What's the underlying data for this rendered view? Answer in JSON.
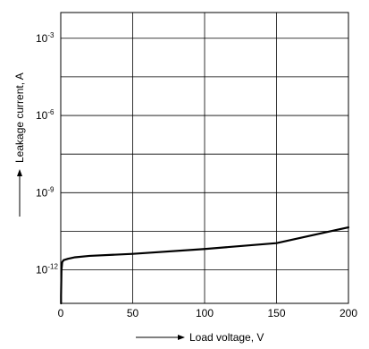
{
  "chart_data": {
    "type": "line",
    "title": "",
    "xlabel": "Load voltage, V",
    "ylabel": "Leakage current, A",
    "xlim": [
      0,
      200
    ],
    "ylim_log10": [
      -13.3,
      -2
    ],
    "y_scale": "log",
    "grid": true,
    "x_ticks": [
      {
        "value": 0,
        "label": "0"
      },
      {
        "value": 50,
        "label": "50"
      },
      {
        "value": 100,
        "label": "100"
      },
      {
        "value": 150,
        "label": "150"
      },
      {
        "value": 200,
        "label": "200"
      }
    ],
    "y_ticks": [
      {
        "value": 0.001,
        "base": "10",
        "exp": "-3"
      },
      {
        "value": 1e-06,
        "base": "10",
        "exp": "-6"
      },
      {
        "value": 1e-09,
        "base": "10",
        "exp": "-9"
      },
      {
        "value": 1e-12,
        "base": "10",
        "exp": "-12"
      }
    ],
    "series": [
      {
        "x": [
          0.2,
          0.5,
          1,
          2,
          5,
          10,
          20,
          50,
          100,
          150,
          200
        ],
        "y": [
          1e-13,
          1e-12,
          2e-12,
          2.4e-12,
          2.7e-12,
          3.1e-12,
          3.5e-12,
          4.2e-12,
          6.5e-12,
          1.1e-11,
          4.5e-11
        ]
      }
    ]
  }
}
